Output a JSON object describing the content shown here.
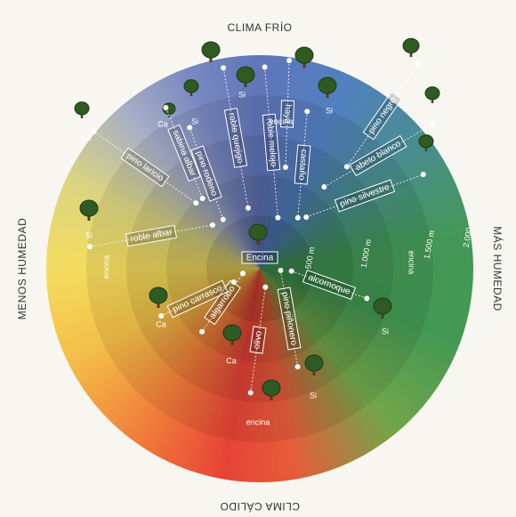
{
  "edges": {
    "top": "CLIMA FRÍO",
    "left": "MENOS HUMEDAD",
    "right": "MÁS HUMEDAD",
    "bottom": "CLIMA CÁLIDO"
  },
  "center_label": "Encina",
  "species": [
    "pino laricio",
    "sabina albar",
    "pino rodeno",
    "roble quejigo",
    "roble melojo",
    "haya",
    "castaño",
    "pino negro",
    "abeto blanco",
    "pino silvestre",
    "roble albar",
    "alcornoque",
    "pino piñonero",
    "olivo",
    "algarrobo",
    "pino carrasco"
  ],
  "altitudes": [
    "500 m",
    "1.000 m",
    "1.500 m",
    "2.000 m"
  ],
  "encina_labels": [
    "encina",
    "encina",
    "encina",
    "encina"
  ],
  "soil_labels": [
    "Ca",
    "Ca",
    "Si",
    "Si",
    "Si",
    "Si",
    "Ca",
    "Ca",
    "Si",
    "Si"
  ]
}
